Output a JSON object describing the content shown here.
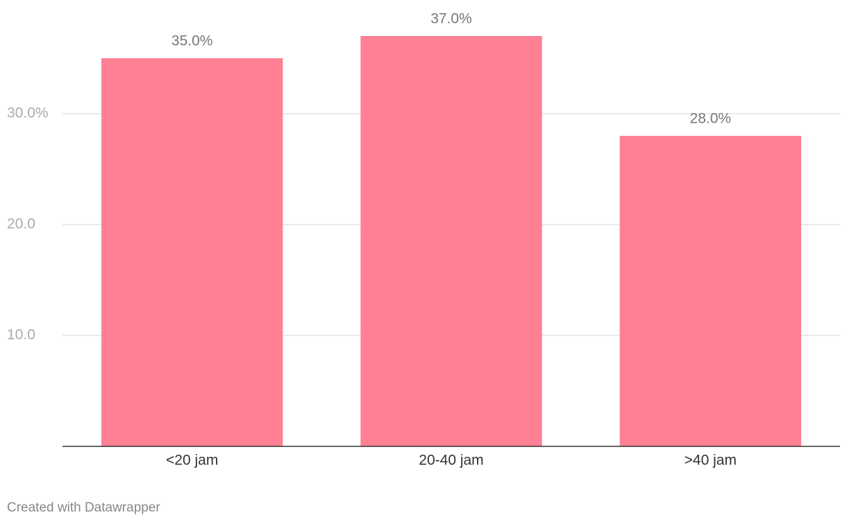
{
  "chart_data": {
    "type": "bar",
    "categories": [
      "<20 jam",
      "20-40 jam",
      ">40 jam"
    ],
    "values": [
      35,
      37,
      28
    ],
    "value_labels": [
      "35.0%",
      "37.0%",
      "28.0%"
    ],
    "color": "#ff8094",
    "ylim": [
      0,
      40
    ],
    "yticks": [
      {
        "value": 10,
        "label": "10.0"
      },
      {
        "value": 20,
        "label": "20.0"
      },
      {
        "value": 30,
        "label": "30.0%"
      }
    ],
    "grid": true
  },
  "footer": "Created with Datawrapper"
}
